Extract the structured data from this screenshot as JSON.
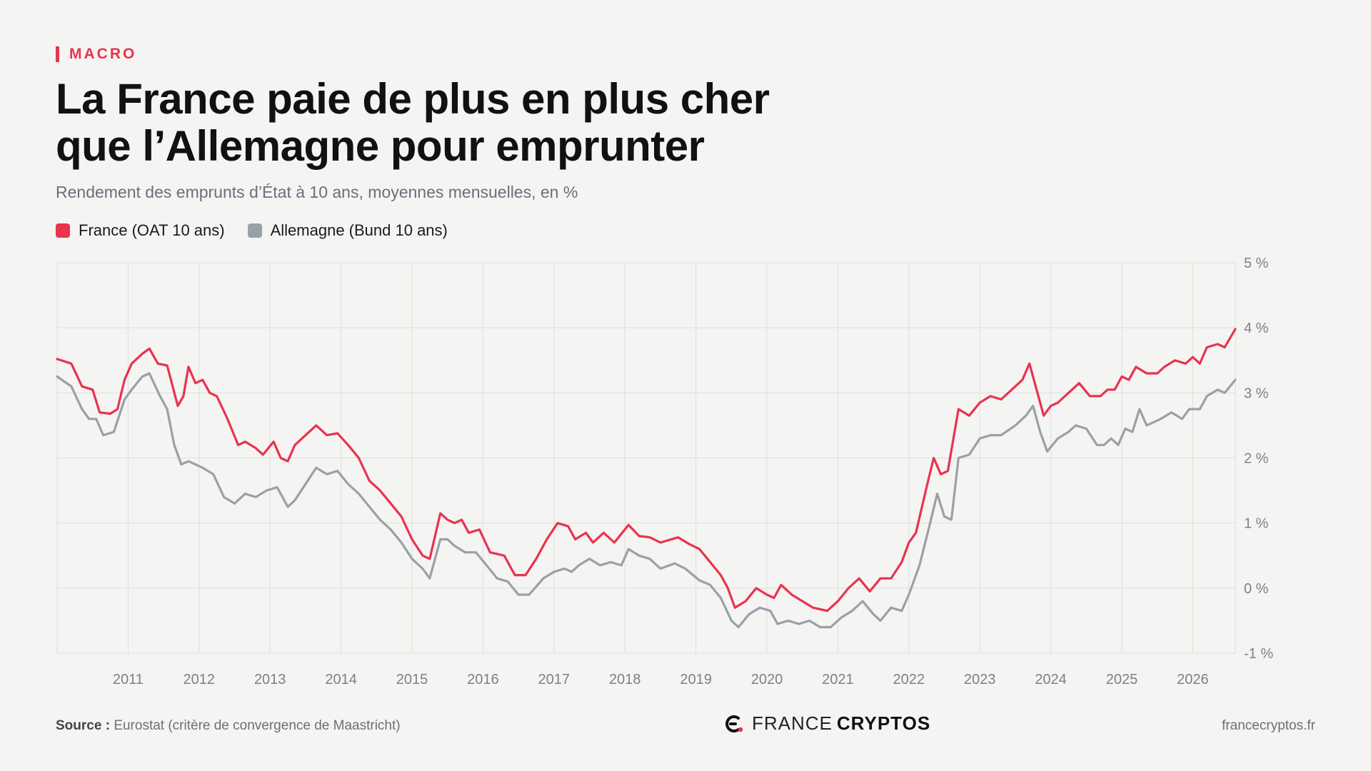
{
  "header": {
    "kicker": "MACRO",
    "title_line1": "La France paie de plus en plus cher",
    "title_line2": "que l’Allemagne pour emprunter",
    "subtitle": "Rendement des emprunts d’État à 10 ans, moyennes mensuelles, en %"
  },
  "footer": {
    "source_label": "Source :",
    "source_text": "Eurostat (critère de convergence de Maastricht)",
    "logo_light": "FRANCE",
    "logo_bold": "CRYPTOS",
    "website": "francecryptos.fr"
  },
  "colors": {
    "france": "#e8334f",
    "germany": "#9aa0a8",
    "grid": "#dedede",
    "axis_text": "#7b818b"
  },
  "icons": {
    "logo": "france-cryptos-logo-icon"
  },
  "chart_data": {
    "type": "line",
    "title": "La France paie de plus en plus cher que l’Allemagne pour emprunter",
    "ylabel": "",
    "xlabel": "",
    "xlim": [
      2010.0,
      2026.6
    ],
    "ylim": [
      -1,
      5
    ],
    "y_ticks": [
      5,
      4,
      3,
      2,
      1,
      0,
      -1
    ],
    "y_tick_labels": [
      "5 %",
      "4 %",
      "3 %",
      "2 %",
      "1 %",
      "0 %",
      "-1 %"
    ],
    "x_ticks": [
      2011,
      2012,
      2013,
      2014,
      2015,
      2016,
      2017,
      2018,
      2019,
      2020,
      2021,
      2022,
      2023,
      2024,
      2025,
      2026
    ],
    "x_tick_labels": [
      "2011",
      "2012",
      "2013",
      "2014",
      "2015",
      "2016",
      "2017",
      "2018",
      "2019",
      "2020",
      "2021",
      "2022",
      "2023",
      "2024",
      "2025",
      "2026"
    ],
    "grid": true,
    "legend_position": "top-left",
    "series": [
      {
        "name": "France (OAT 10 ans)",
        "color": "#e8334f",
        "points": [
          [
            2010.0,
            3.52
          ],
          [
            2010.2,
            3.45
          ],
          [
            2010.35,
            3.1
          ],
          [
            2010.5,
            3.05
          ],
          [
            2010.6,
            2.7
          ],
          [
            2010.75,
            2.68
          ],
          [
            2010.85,
            2.75
          ],
          [
            2010.95,
            3.2
          ],
          [
            2011.05,
            3.45
          ],
          [
            2011.2,
            3.6
          ],
          [
            2011.3,
            3.68
          ],
          [
            2011.42,
            3.45
          ],
          [
            2011.55,
            3.42
          ],
          [
            2011.7,
            2.8
          ],
          [
            2011.78,
            2.95
          ],
          [
            2011.85,
            3.4
          ],
          [
            2011.95,
            3.15
          ],
          [
            2012.05,
            3.2
          ],
          [
            2012.15,
            3.0
          ],
          [
            2012.25,
            2.95
          ],
          [
            2012.4,
            2.6
          ],
          [
            2012.55,
            2.2
          ],
          [
            2012.65,
            2.25
          ],
          [
            2012.8,
            2.15
          ],
          [
            2012.9,
            2.05
          ],
          [
            2013.05,
            2.25
          ],
          [
            2013.15,
            2.0
          ],
          [
            2013.25,
            1.95
          ],
          [
            2013.35,
            2.2
          ],
          [
            2013.5,
            2.35
          ],
          [
            2013.65,
            2.5
          ],
          [
            2013.8,
            2.35
          ],
          [
            2013.95,
            2.38
          ],
          [
            2014.1,
            2.2
          ],
          [
            2014.25,
            2.0
          ],
          [
            2014.4,
            1.65
          ],
          [
            2014.55,
            1.5
          ],
          [
            2014.7,
            1.3
          ],
          [
            2014.85,
            1.1
          ],
          [
            2015.0,
            0.75
          ],
          [
            2015.15,
            0.5
          ],
          [
            2015.25,
            0.45
          ],
          [
            2015.4,
            1.15
          ],
          [
            2015.5,
            1.05
          ],
          [
            2015.6,
            1.0
          ],
          [
            2015.7,
            1.05
          ],
          [
            2015.8,
            0.85
          ],
          [
            2015.95,
            0.9
          ],
          [
            2016.1,
            0.55
          ],
          [
            2016.3,
            0.5
          ],
          [
            2016.45,
            0.2
          ],
          [
            2016.6,
            0.2
          ],
          [
            2016.75,
            0.45
          ],
          [
            2016.9,
            0.75
          ],
          [
            2017.05,
            1.0
          ],
          [
            2017.2,
            0.95
          ],
          [
            2017.3,
            0.75
          ],
          [
            2017.45,
            0.85
          ],
          [
            2017.55,
            0.7
          ],
          [
            2017.7,
            0.85
          ],
          [
            2017.85,
            0.7
          ],
          [
            2018.05,
            0.97
          ],
          [
            2018.2,
            0.8
          ],
          [
            2018.35,
            0.78
          ],
          [
            2018.5,
            0.7
          ],
          [
            2018.75,
            0.78
          ],
          [
            2018.9,
            0.68
          ],
          [
            2019.05,
            0.6
          ],
          [
            2019.2,
            0.4
          ],
          [
            2019.35,
            0.2
          ],
          [
            2019.45,
            0.0
          ],
          [
            2019.55,
            -0.3
          ],
          [
            2019.7,
            -0.2
          ],
          [
            2019.85,
            0.0
          ],
          [
            2020.0,
            -0.1
          ],
          [
            2020.1,
            -0.15
          ],
          [
            2020.2,
            0.05
          ],
          [
            2020.35,
            -0.1
          ],
          [
            2020.5,
            -0.2
          ],
          [
            2020.65,
            -0.3
          ],
          [
            2020.85,
            -0.35
          ],
          [
            2021.0,
            -0.2
          ],
          [
            2021.15,
            0.0
          ],
          [
            2021.3,
            0.15
          ],
          [
            2021.45,
            -0.05
          ],
          [
            2021.6,
            0.15
          ],
          [
            2021.75,
            0.15
          ],
          [
            2021.9,
            0.4
          ],
          [
            2022.0,
            0.7
          ],
          [
            2022.1,
            0.85
          ],
          [
            2022.25,
            1.55
          ],
          [
            2022.35,
            2.0
          ],
          [
            2022.45,
            1.75
          ],
          [
            2022.55,
            1.8
          ],
          [
            2022.7,
            2.75
          ],
          [
            2022.85,
            2.65
          ],
          [
            2023.0,
            2.85
          ],
          [
            2023.15,
            2.95
          ],
          [
            2023.3,
            2.9
          ],
          [
            2023.45,
            3.05
          ],
          [
            2023.6,
            3.2
          ],
          [
            2023.7,
            3.45
          ],
          [
            2023.8,
            3.05
          ],
          [
            2023.9,
            2.65
          ],
          [
            2024.0,
            2.8
          ],
          [
            2024.1,
            2.85
          ],
          [
            2024.25,
            3.0
          ],
          [
            2024.4,
            3.15
          ],
          [
            2024.55,
            2.95
          ],
          [
            2024.7,
            2.95
          ],
          [
            2024.8,
            3.05
          ],
          [
            2024.9,
            3.05
          ],
          [
            2025.0,
            3.25
          ],
          [
            2025.1,
            3.2
          ],
          [
            2025.2,
            3.4
          ],
          [
            2025.35,
            3.3
          ],
          [
            2025.5,
            3.3
          ],
          [
            2025.6,
            3.4
          ],
          [
            2025.75,
            3.5
          ],
          [
            2025.9,
            3.45
          ],
          [
            2026.0,
            3.55
          ],
          [
            2026.1,
            3.45
          ],
          [
            2026.2,
            3.7
          ],
          [
            2026.35,
            3.75
          ],
          [
            2026.45,
            3.7
          ],
          [
            2026.6,
            3.98
          ]
        ]
      },
      {
        "name": "Allemagne (Bund 10 ans)",
        "color": "#9aa0a8",
        "points": [
          [
            2010.0,
            3.25
          ],
          [
            2010.2,
            3.1
          ],
          [
            2010.35,
            2.75
          ],
          [
            2010.45,
            2.6
          ],
          [
            2010.55,
            2.6
          ],
          [
            2010.65,
            2.35
          ],
          [
            2010.8,
            2.4
          ],
          [
            2010.95,
            2.9
          ],
          [
            2011.05,
            3.05
          ],
          [
            2011.2,
            3.25
          ],
          [
            2011.3,
            3.3
          ],
          [
            2011.45,
            2.95
          ],
          [
            2011.55,
            2.75
          ],
          [
            2011.65,
            2.2
          ],
          [
            2011.75,
            1.9
          ],
          [
            2011.85,
            1.95
          ],
          [
            2011.95,
            1.9
          ],
          [
            2012.05,
            1.85
          ],
          [
            2012.2,
            1.75
          ],
          [
            2012.35,
            1.4
          ],
          [
            2012.5,
            1.3
          ],
          [
            2012.65,
            1.45
          ],
          [
            2012.8,
            1.4
          ],
          [
            2012.95,
            1.5
          ],
          [
            2013.1,
            1.55
          ],
          [
            2013.25,
            1.25
          ],
          [
            2013.35,
            1.35
          ],
          [
            2013.5,
            1.6
          ],
          [
            2013.65,
            1.85
          ],
          [
            2013.8,
            1.75
          ],
          [
            2013.95,
            1.8
          ],
          [
            2014.1,
            1.6
          ],
          [
            2014.25,
            1.45
          ],
          [
            2014.4,
            1.25
          ],
          [
            2014.55,
            1.05
          ],
          [
            2014.7,
            0.9
          ],
          [
            2014.85,
            0.7
          ],
          [
            2015.0,
            0.45
          ],
          [
            2015.15,
            0.3
          ],
          [
            2015.25,
            0.15
          ],
          [
            2015.4,
            0.75
          ],
          [
            2015.5,
            0.75
          ],
          [
            2015.6,
            0.65
          ],
          [
            2015.75,
            0.55
          ],
          [
            2015.9,
            0.55
          ],
          [
            2016.05,
            0.35
          ],
          [
            2016.2,
            0.15
          ],
          [
            2016.35,
            0.1
          ],
          [
            2016.5,
            -0.1
          ],
          [
            2016.65,
            -0.1
          ],
          [
            2016.85,
            0.15
          ],
          [
            2017.0,
            0.25
          ],
          [
            2017.15,
            0.3
          ],
          [
            2017.25,
            0.25
          ],
          [
            2017.35,
            0.35
          ],
          [
            2017.5,
            0.45
          ],
          [
            2017.65,
            0.35
          ],
          [
            2017.8,
            0.4
          ],
          [
            2017.95,
            0.35
          ],
          [
            2018.05,
            0.6
          ],
          [
            2018.2,
            0.5
          ],
          [
            2018.35,
            0.45
          ],
          [
            2018.5,
            0.3
          ],
          [
            2018.7,
            0.38
          ],
          [
            2018.85,
            0.3
          ],
          [
            2019.05,
            0.12
          ],
          [
            2019.2,
            0.05
          ],
          [
            2019.35,
            -0.15
          ],
          [
            2019.5,
            -0.5
          ],
          [
            2019.6,
            -0.6
          ],
          [
            2019.75,
            -0.4
          ],
          [
            2019.9,
            -0.3
          ],
          [
            2020.05,
            -0.35
          ],
          [
            2020.15,
            -0.55
          ],
          [
            2020.3,
            -0.5
          ],
          [
            2020.45,
            -0.55
          ],
          [
            2020.6,
            -0.5
          ],
          [
            2020.75,
            -0.6
          ],
          [
            2020.9,
            -0.6
          ],
          [
            2021.05,
            -0.45
          ],
          [
            2021.2,
            -0.35
          ],
          [
            2021.35,
            -0.2
          ],
          [
            2021.5,
            -0.4
          ],
          [
            2021.6,
            -0.5
          ],
          [
            2021.75,
            -0.3
          ],
          [
            2021.9,
            -0.35
          ],
          [
            2022.0,
            -0.1
          ],
          [
            2022.15,
            0.35
          ],
          [
            2022.3,
            1.0
          ],
          [
            2022.4,
            1.45
          ],
          [
            2022.5,
            1.1
          ],
          [
            2022.6,
            1.05
          ],
          [
            2022.7,
            2.0
          ],
          [
            2022.85,
            2.05
          ],
          [
            2023.0,
            2.3
          ],
          [
            2023.15,
            2.35
          ],
          [
            2023.3,
            2.35
          ],
          [
            2023.5,
            2.5
          ],
          [
            2023.65,
            2.65
          ],
          [
            2023.75,
            2.8
          ],
          [
            2023.85,
            2.4
          ],
          [
            2023.95,
            2.1
          ],
          [
            2024.1,
            2.3
          ],
          [
            2024.25,
            2.4
          ],
          [
            2024.35,
            2.5
          ],
          [
            2024.5,
            2.45
          ],
          [
            2024.65,
            2.2
          ],
          [
            2024.75,
            2.2
          ],
          [
            2024.85,
            2.3
          ],
          [
            2024.95,
            2.2
          ],
          [
            2025.05,
            2.45
          ],
          [
            2025.15,
            2.4
          ],
          [
            2025.25,
            2.75
          ],
          [
            2025.35,
            2.5
          ],
          [
            2025.45,
            2.55
          ],
          [
            2025.55,
            2.6
          ],
          [
            2025.7,
            2.7
          ],
          [
            2025.85,
            2.6
          ],
          [
            2025.95,
            2.75
          ],
          [
            2026.1,
            2.75
          ],
          [
            2026.2,
            2.95
          ],
          [
            2026.35,
            3.05
          ],
          [
            2026.45,
            3.0
          ],
          [
            2026.6,
            3.2
          ]
        ]
      }
    ]
  }
}
